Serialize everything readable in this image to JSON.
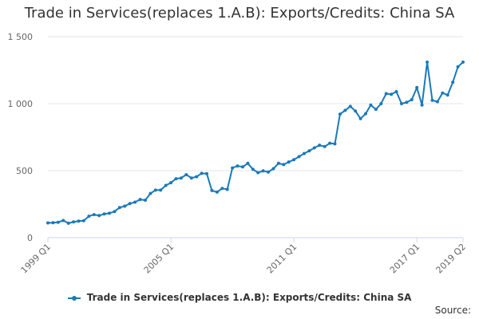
{
  "title": "Trade in Services(replaces 1.A.B): Exports/Credits: China SA",
  "source_label": "Source:",
  "colors": {
    "series": "#1a7ab9",
    "grid": "#e6e6e6",
    "axis": "#ccd6eb"
  },
  "chart_data": {
    "type": "line",
    "title": "Trade in Services(replaces 1.A.B): Exports/Credits: China SA",
    "xlabel": "",
    "ylabel": "",
    "ylim": [
      0,
      1500
    ],
    "y_ticks": [
      0,
      500,
      1000,
      1500
    ],
    "y_tick_labels": [
      "0",
      "500",
      "1 000",
      "1 500"
    ],
    "x_tick_labels": [
      "1999 Q1",
      "2005 Q1",
      "2011 Q1",
      "2017 Q1",
      "2019 Q2"
    ],
    "grid": true,
    "legend_position": "bottom",
    "series": [
      {
        "name": "Trade in Services(replaces 1.A.B): Exports/Credits: China SA",
        "x": [
          "1999 Q1",
          "1999 Q2",
          "1999 Q3",
          "1999 Q4",
          "2000 Q1",
          "2000 Q2",
          "2000 Q3",
          "2000 Q4",
          "2001 Q1",
          "2001 Q2",
          "2001 Q3",
          "2001 Q4",
          "2002 Q1",
          "2002 Q2",
          "2002 Q3",
          "2002 Q4",
          "2003 Q1",
          "2003 Q2",
          "2003 Q3",
          "2003 Q4",
          "2004 Q1",
          "2004 Q2",
          "2004 Q3",
          "2004 Q4",
          "2005 Q1",
          "2005 Q2",
          "2005 Q3",
          "2005 Q4",
          "2006 Q1",
          "2006 Q2",
          "2006 Q3",
          "2006 Q4",
          "2007 Q1",
          "2007 Q2",
          "2007 Q3",
          "2007 Q4",
          "2008 Q1",
          "2008 Q2",
          "2008 Q3",
          "2008 Q4",
          "2009 Q1",
          "2009 Q2",
          "2009 Q3",
          "2009 Q4",
          "2010 Q1",
          "2010 Q2",
          "2010 Q3",
          "2010 Q4",
          "2011 Q1",
          "2011 Q2",
          "2011 Q3",
          "2011 Q4",
          "2012 Q1",
          "2012 Q2",
          "2012 Q3",
          "2012 Q4",
          "2013 Q1",
          "2013 Q2",
          "2013 Q3",
          "2013 Q4",
          "2014 Q1",
          "2014 Q2",
          "2014 Q3",
          "2014 Q4",
          "2015 Q1",
          "2015 Q2",
          "2015 Q3",
          "2015 Q4",
          "2016 Q1",
          "2016 Q2",
          "2016 Q3",
          "2016 Q4",
          "2017 Q1",
          "2017 Q2",
          "2017 Q3",
          "2017 Q4",
          "2018 Q1",
          "2018 Q2",
          "2018 Q3",
          "2018 Q4",
          "2019 Q1",
          "2019 Q2"
        ],
        "values": [
          110,
          112,
          115,
          128,
          108,
          117,
          123,
          127,
          160,
          172,
          165,
          177,
          182,
          195,
          225,
          235,
          255,
          265,
          285,
          280,
          330,
          355,
          355,
          390,
          410,
          440,
          445,
          470,
          445,
          455,
          480,
          478,
          352,
          340,
          368,
          360,
          520,
          535,
          528,
          555,
          510,
          485,
          498,
          490,
          515,
          555,
          545,
          565,
          582,
          605,
          628,
          648,
          670,
          690,
          680,
          705,
          700,
          922,
          950,
          980,
          945,
          888,
          925,
          990,
          958,
          1000,
          1075,
          1070,
          1090,
          1000,
          1010,
          1030,
          1120,
          990,
          1310,
          1025,
          1015,
          1080,
          1065,
          1160,
          1275,
          1310
        ]
      }
    ]
  }
}
